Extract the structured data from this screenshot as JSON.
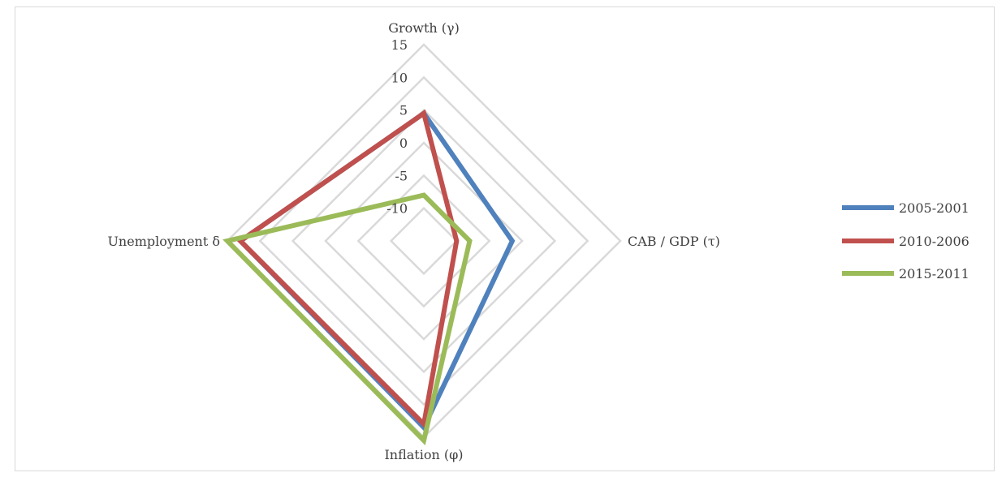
{
  "chart_data": {
    "type": "radar",
    "axes": [
      "Growth (γ)",
      "CAB / GDP (τ)",
      "Inflation (φ)",
      "Unemployment δ"
    ],
    "rmin": -15,
    "rmax": 15,
    "ticks": [
      -15,
      -10,
      -5,
      0,
      5,
      10,
      15
    ],
    "tick_labels": [
      "-10",
      "-5",
      "0",
      "5",
      "10",
      "15"
    ],
    "series": [
      {
        "name": "2005-2001",
        "color": "#4f81bd",
        "values": [
          4.5,
          -1.5,
          13.5,
          13
        ]
      },
      {
        "name": "2010-2006",
        "color": "#c0504d",
        "values": [
          4.5,
          -10,
          13,
          13
        ]
      },
      {
        "name": "2015-2011",
        "color": "#9bbb59",
        "values": [
          -8,
          -8,
          15.5,
          15
        ]
      }
    ],
    "legend_position": "right",
    "grid": true
  }
}
